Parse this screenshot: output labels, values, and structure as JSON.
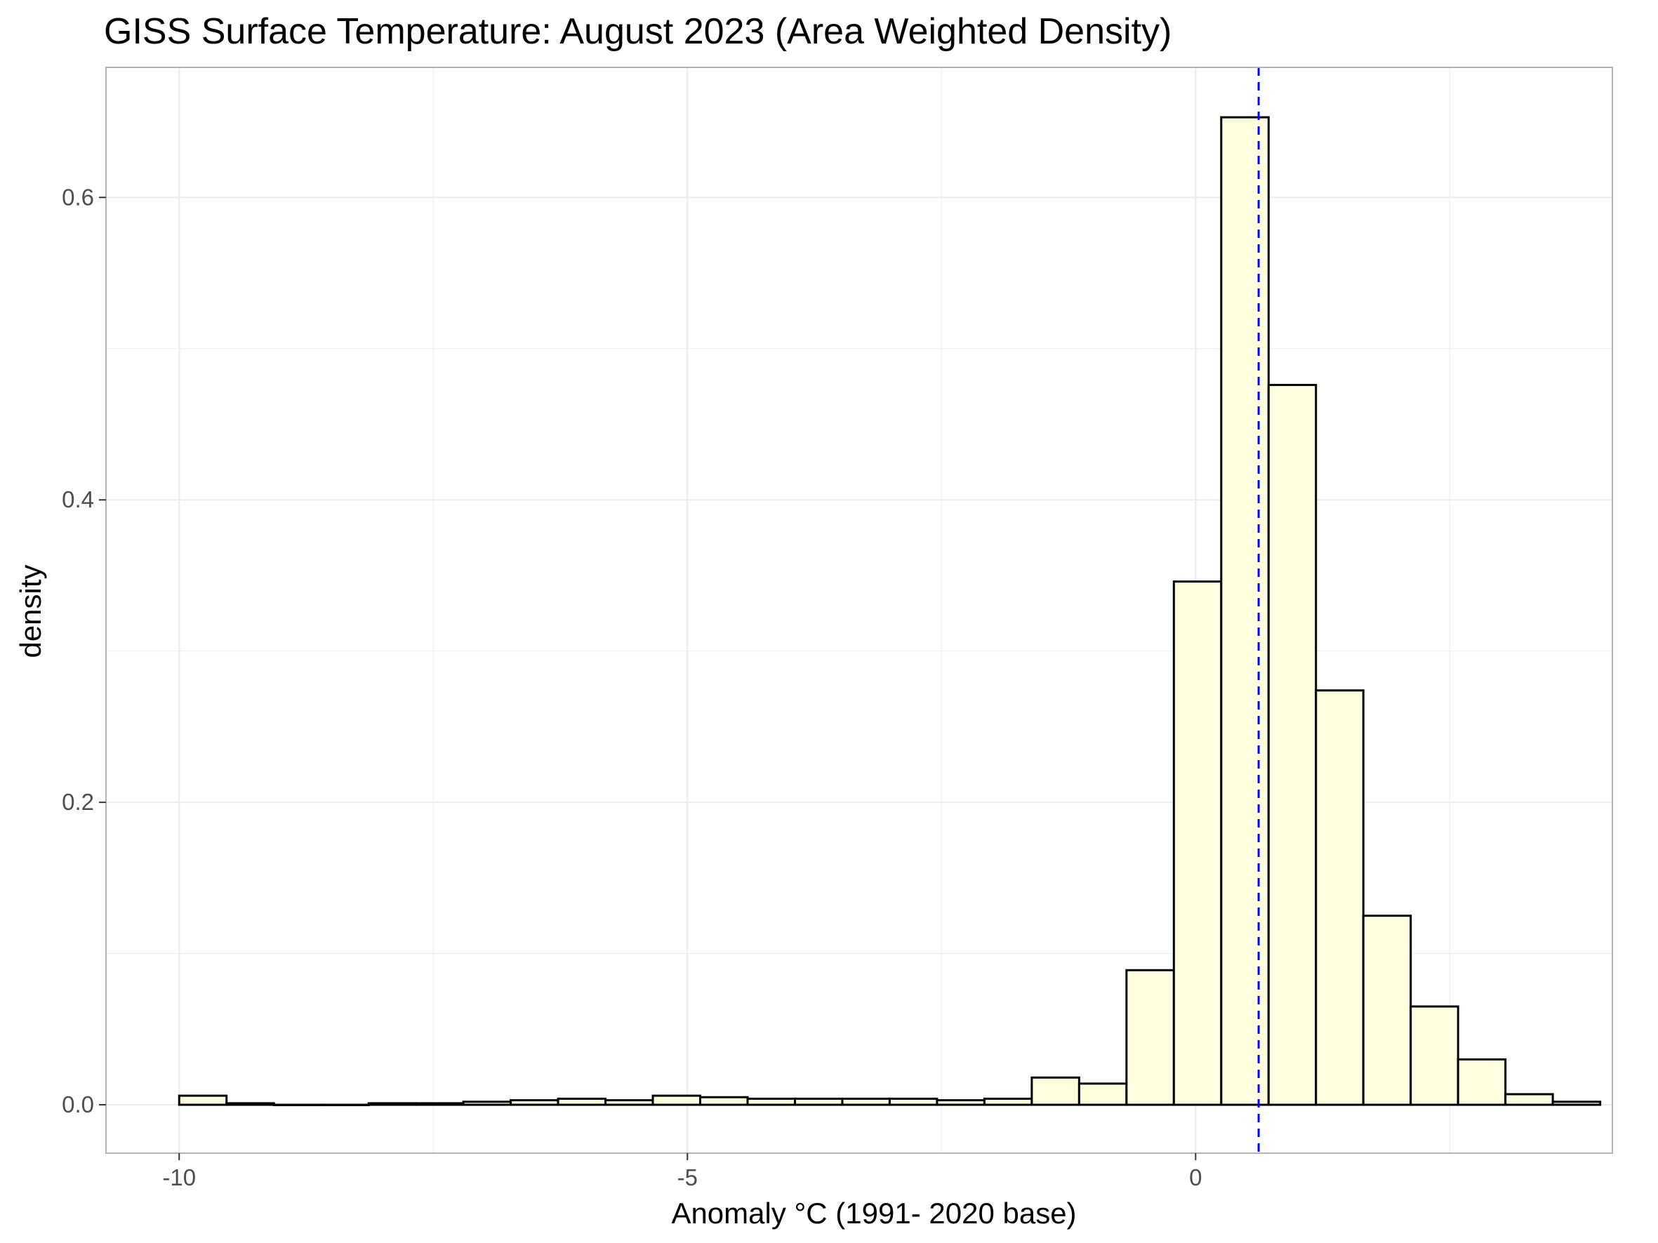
{
  "chart_data": {
    "type": "bar",
    "title": "GISS Surface Temperature: August 2023 (Area Weighted Density)",
    "xlabel": "Anomaly °C (1991- 2020 base)",
    "ylabel": "density",
    "xlim": [
      -10.72,
      4.1
    ],
    "ylim": [
      -0.032,
      0.686
    ],
    "x_ticks": [
      {
        "value": -10,
        "label": "-10"
      },
      {
        "value": -5,
        "label": "-5"
      },
      {
        "value": 0,
        "label": "0"
      }
    ],
    "y_ticks": [
      {
        "value": 0.0,
        "label": "0.0"
      },
      {
        "value": 0.2,
        "label": "0.2"
      },
      {
        "value": 0.4,
        "label": "0.4"
      },
      {
        "value": 0.6,
        "label": "0.6"
      }
    ],
    "x_minor_gridlines": [
      -7.5,
      -2.5,
      2.5
    ],
    "y_minor_gridlines": [
      0.1,
      0.3,
      0.5
    ],
    "grid": true,
    "bin_width": 0.466,
    "bins": [
      {
        "start": -10.0,
        "density": 0.006
      },
      {
        "start": -9.534,
        "density": 0.001
      },
      {
        "start": -9.068,
        "density": 0.0
      },
      {
        "start": -8.602,
        "density": 0.0
      },
      {
        "start": -8.136,
        "density": 0.001
      },
      {
        "start": -7.67,
        "density": 0.001
      },
      {
        "start": -7.204,
        "density": 0.002
      },
      {
        "start": -6.738,
        "density": 0.003
      },
      {
        "start": -6.272,
        "density": 0.004
      },
      {
        "start": -5.806,
        "density": 0.003
      },
      {
        "start": -5.34,
        "density": 0.006
      },
      {
        "start": -4.874,
        "density": 0.005
      },
      {
        "start": -4.408,
        "density": 0.004
      },
      {
        "start": -3.942,
        "density": 0.004
      },
      {
        "start": -3.476,
        "density": 0.004
      },
      {
        "start": -3.01,
        "density": 0.004
      },
      {
        "start": -2.544,
        "density": 0.003
      },
      {
        "start": -2.078,
        "density": 0.004
      },
      {
        "start": -1.612,
        "density": 0.018
      },
      {
        "start": -1.146,
        "density": 0.014
      },
      {
        "start": -0.68,
        "density": 0.089
      },
      {
        "start": -0.214,
        "density": 0.346
      },
      {
        "start": 0.252,
        "density": 0.653
      },
      {
        "start": 0.718,
        "density": 0.476
      },
      {
        "start": 1.184,
        "density": 0.274
      },
      {
        "start": 1.65,
        "density": 0.125
      },
      {
        "start": 2.116,
        "density": 0.065
      },
      {
        "start": 2.582,
        "density": 0.03
      },
      {
        "start": 3.048,
        "density": 0.007
      },
      {
        "start": 3.514,
        "density": 0.002
      }
    ],
    "reference_line": {
      "x": 0.62,
      "orientation": "vertical",
      "style": "dashed",
      "color": "#0000ff"
    },
    "bar_fill": "#ffffe0",
    "bar_stroke": "#000000",
    "panel_border_color": "#b3b3b3",
    "grid_color": "#ebebeb",
    "background": "#ffffff"
  }
}
